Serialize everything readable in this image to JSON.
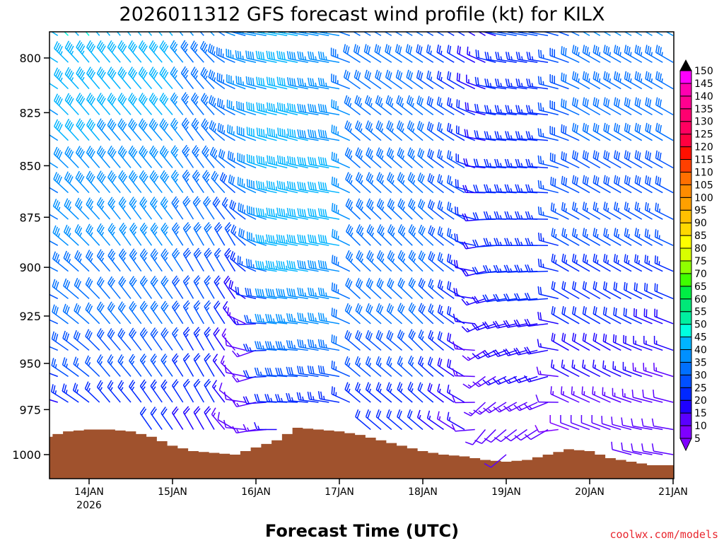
{
  "chart_data": {
    "type": "wind-barb-profile",
    "title": "2026011312 GFS forecast wind profile (kt) for KILX",
    "xlabel": "Forecast Time (UTC)",
    "ylabel": "",
    "credit": "coolwx.com/models",
    "x_start": "13JAN 12Z",
    "x_step_hours": 6,
    "x_ticks": [
      "14JAN",
      "15JAN",
      "16JAN",
      "17JAN",
      "18JAN",
      "19JAN",
      "20JAN",
      "21JAN"
    ],
    "x_tick_hours": [
      12,
      36,
      60,
      84,
      108,
      132,
      156,
      180
    ],
    "x_year_label": "2026",
    "y_ticks": [
      800,
      825,
      850,
      875,
      900,
      925,
      950,
      975,
      1000
    ],
    "ylim": [
      788,
      1013
    ],
    "y_reversed": true,
    "display_levels": [
      790,
      802,
      814,
      826,
      838,
      851,
      863,
      876,
      889,
      902,
      916,
      929,
      943,
      957,
      971,
      986,
      1000
    ],
    "anchor_levels": [
      985,
      940,
      890,
      840,
      790
    ],
    "wind": [
      [
        [
          260,
          15
        ],
        [
          280,
          25
        ],
        [
          285,
          30
        ],
        [
          290,
          35
        ],
        [
          290,
          45
        ]
      ],
      [
        [
          300,
          20
        ],
        [
          305,
          30
        ],
        [
          310,
          35
        ],
        [
          315,
          40
        ],
        [
          315,
          45
        ]
      ],
      [
        [
          305,
          20
        ],
        [
          310,
          30
        ],
        [
          315,
          35
        ],
        [
          320,
          40
        ],
        [
          320,
          45
        ]
      ],
      [
        [
          320,
          20
        ],
        [
          320,
          30
        ],
        [
          320,
          35
        ],
        [
          320,
          40
        ],
        [
          320,
          40
        ]
      ],
      [
        [
          320,
          20
        ],
        [
          320,
          30
        ],
        [
          325,
          35
        ],
        [
          320,
          40
        ],
        [
          320,
          40
        ]
      ],
      [
        [
          325,
          20
        ],
        [
          325,
          30
        ],
        [
          325,
          35
        ],
        [
          320,
          40
        ],
        [
          320,
          40
        ]
      ],
      [
        [
          325,
          20
        ],
        [
          325,
          30
        ],
        [
          325,
          35
        ],
        [
          320,
          40
        ],
        [
          320,
          40
        ]
      ],
      [
        [
          330,
          18
        ],
        [
          330,
          25
        ],
        [
          330,
          30
        ],
        [
          325,
          35
        ],
        [
          320,
          35
        ]
      ],
      [
        [
          330,
          18
        ],
        [
          330,
          25
        ],
        [
          330,
          30
        ],
        [
          320,
          35
        ],
        [
          315,
          35
        ]
      ],
      [
        [
          300,
          10
        ],
        [
          320,
          15
        ],
        [
          330,
          25
        ],
        [
          300,
          35
        ],
        [
          290,
          35
        ]
      ],
      [
        [
          260,
          15
        ],
        [
          250,
          15
        ],
        [
          300,
          30
        ],
        [
          290,
          40
        ],
        [
          280,
          35
        ]
      ],
      [
        [
          270,
          15
        ],
        [
          275,
          35
        ],
        [
          280,
          45
        ],
        [
          285,
          45
        ],
        [
          280,
          40
        ]
      ],
      [
        [
          270,
          20
        ],
        [
          275,
          35
        ],
        [
          280,
          45
        ],
        [
          285,
          45
        ],
        [
          280,
          40
        ]
      ],
      [
        [
          275,
          20
        ],
        [
          280,
          35
        ],
        [
          280,
          40
        ],
        [
          280,
          40
        ],
        [
          280,
          35
        ]
      ],
      [
        [
          280,
          20
        ],
        [
          280,
          35
        ],
        [
          280,
          40
        ],
        [
          280,
          40
        ],
        [
          280,
          35
        ]
      ],
      [
        [
          310,
          20
        ],
        [
          310,
          30
        ],
        [
          315,
          35
        ],
        [
          310,
          35
        ],
        [
          300,
          30
        ]
      ],
      [
        [
          310,
          20
        ],
        [
          310,
          30
        ],
        [
          315,
          35
        ],
        [
          310,
          35
        ],
        [
          300,
          30
        ]
      ],
      [
        [
          310,
          20
        ],
        [
          310,
          30
        ],
        [
          315,
          35
        ],
        [
          310,
          35
        ],
        [
          300,
          30
        ]
      ],
      [
        [
          310,
          20
        ],
        [
          315,
          30
        ],
        [
          315,
          35
        ],
        [
          310,
          35
        ],
        [
          300,
          30
        ]
      ],
      [
        [
          305,
          15
        ],
        [
          310,
          25
        ],
        [
          310,
          30
        ],
        [
          305,
          30
        ],
        [
          300,
          25
        ]
      ],
      [
        [
          300,
          15
        ],
        [
          300,
          20
        ],
        [
          300,
          25
        ],
        [
          300,
          25
        ],
        [
          300,
          20
        ]
      ],
      [
        [
          220,
          12
        ],
        [
          240,
          15
        ],
        [
          260,
          20
        ],
        [
          280,
          20
        ],
        [
          300,
          15
        ]
      ],
      [
        [
          230,
          12
        ],
        [
          250,
          18
        ],
        [
          270,
          25
        ],
        [
          275,
          25
        ],
        [
          280,
          25
        ]
      ],
      [
        [
          235,
          12
        ],
        [
          255,
          18
        ],
        [
          270,
          25
        ],
        [
          275,
          25
        ],
        [
          280,
          25
        ]
      ],
      [
        [
          240,
          12
        ],
        [
          260,
          18
        ],
        [
          270,
          25
        ],
        [
          275,
          25
        ],
        [
          280,
          25
        ]
      ],
      [
        [
          290,
          10
        ],
        [
          300,
          20
        ],
        [
          300,
          25
        ],
        [
          290,
          30
        ],
        [
          290,
          30
        ]
      ],
      [
        [
          290,
          12
        ],
        [
          300,
          20
        ],
        [
          300,
          25
        ],
        [
          300,
          30
        ],
        [
          300,
          35
        ]
      ],
      [
        [
          290,
          12
        ],
        [
          300,
          20
        ],
        [
          300,
          25
        ],
        [
          300,
          30
        ],
        [
          300,
          35
        ]
      ],
      [
        [
          285,
          12
        ],
        [
          295,
          20
        ],
        [
          300,
          25
        ],
        [
          300,
          30
        ],
        [
          300,
          35
        ]
      ],
      [
        [
          280,
          10
        ],
        [
          290,
          18
        ],
        [
          300,
          25
        ],
        [
          300,
          30
        ],
        [
          300,
          35
        ]
      ],
      [
        [
          280,
          10
        ],
        [
          290,
          18
        ],
        [
          295,
          25
        ],
        [
          300,
          30
        ],
        [
          300,
          35
        ]
      ]
    ],
    "surface_pressure": [
      990,
      987,
      986,
      986,
      987,
      990,
      995,
      998,
      999,
      1000,
      996,
      992,
      985,
      986,
      987,
      989,
      992,
      995,
      998,
      1000,
      1001,
      1003,
      1004,
      1003,
      1000,
      997,
      998,
      1002,
      1004,
      1006,
      1006
    ],
    "terrain_color": "#a0522d",
    "colorbar": {
      "labels": [
        5,
        10,
        15,
        20,
        25,
        30,
        35,
        40,
        45,
        50,
        55,
        60,
        65,
        70,
        75,
        80,
        85,
        90,
        95,
        100,
        105,
        110,
        115,
        120,
        125,
        130,
        135,
        140,
        145,
        150
      ],
      "colors": [
        "#7f00ff",
        "#5a00ff",
        "#1e00ff",
        "#0028ff",
        "#0050ff",
        "#0070ff",
        "#0090ff",
        "#00b4ff",
        "#00ffe0",
        "#00f0a0",
        "#00e878",
        "#00ee44",
        "#40ff00",
        "#90ff00",
        "#d8ff00",
        "#ffff00",
        "#ffd800",
        "#ffc000",
        "#ffa000",
        "#ff8c00",
        "#ff7000",
        "#ff4000",
        "#ff1000",
        "#ff0040",
        "#ff0060",
        "#ff0070",
        "#ff0090",
        "#ff00b0",
        "#ff00ff"
      ],
      "under_color": "#7f00ff",
      "over_color": "#000000"
    }
  }
}
